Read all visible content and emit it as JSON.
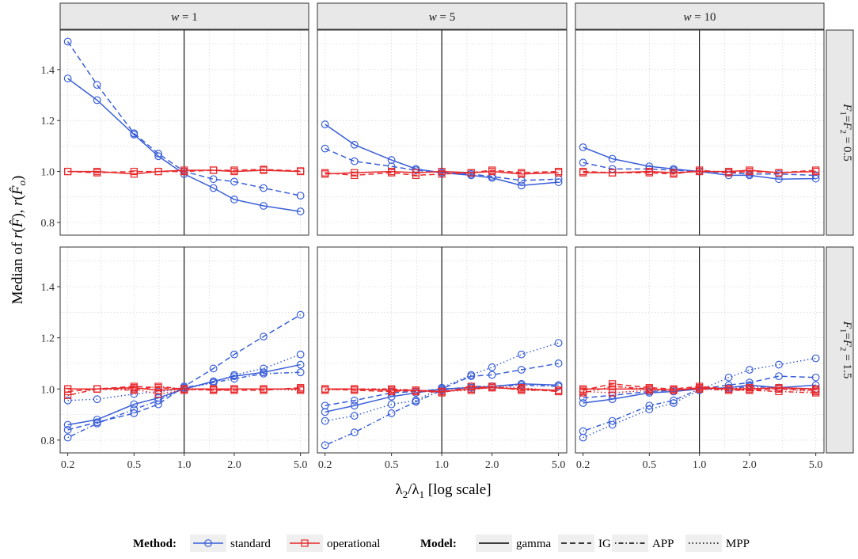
{
  "chart_data": {
    "type": "line",
    "x_axis": {
      "title": "λ2/λ1 [log scale]",
      "scale": "log",
      "ticks": [
        0.2,
        0.5,
        1.0,
        2.0,
        5.0
      ],
      "tick_labels": [
        "0.2",
        "0.5",
        "1.0",
        "2.0",
        "5.0"
      ],
      "range": [
        0.18,
        5.6
      ],
      "reference_line": 1.0
    },
    "y_axis": {
      "title": "Median of r(F̂), r(F̂o)",
      "ticks": [
        0.8,
        1.0,
        1.2,
        1.4
      ],
      "tick_labels": [
        "0.8",
        "1.0",
        "1.2",
        "1.4"
      ],
      "range": [
        0.75,
        1.555
      ]
    },
    "x_values": [
      0.2,
      0.3,
      0.5,
      0.7,
      1.0,
      1.5,
      2.0,
      3.0,
      5.0
    ],
    "col_facets": [
      "w = 1",
      "w = 5",
      "w = 10"
    ],
    "row_facets": [
      "F1=F2=0.5",
      "F1=F2=1.5"
    ],
    "legend": {
      "method_title": "Method:",
      "methods": [
        {
          "key": "standard",
          "label": "standard",
          "color": "#3a5fd9",
          "marker": "circle"
        },
        {
          "key": "operational",
          "label": "operational",
          "color": "#e8282b",
          "marker": "square"
        }
      ],
      "model_title": "Model:",
      "models": [
        {
          "key": "gamma",
          "label": "gamma",
          "dash": "solid"
        },
        {
          "key": "IG",
          "label": "IG",
          "dash": "dashed"
        },
        {
          "key": "APP",
          "label": "APP",
          "dash": "dotdash"
        },
        {
          "key": "MPP",
          "label": "MPP",
          "dash": "dotted"
        }
      ]
    },
    "panels": [
      {
        "row": 0,
        "col": 0,
        "series": [
          {
            "method": "standard",
            "model": "gamma",
            "values": [
              1.365,
              1.28,
              1.145,
              1.06,
              0.99,
              0.935,
              0.89,
              0.865,
              0.843
            ]
          },
          {
            "method": "standard",
            "model": "IG",
            "values": [
              1.51,
              1.34,
              1.15,
              1.07,
              1.0,
              0.97,
              0.96,
              0.935,
              0.905
            ]
          },
          {
            "method": "operational",
            "model": "gamma",
            "values": [
              1.0,
              1.0,
              0.99,
              1.0,
              1.005,
              1.005,
              1.0,
              1.005,
              1.0
            ]
          },
          {
            "method": "operational",
            "model": "IG",
            "values": [
              1.0,
              0.995,
              1.0,
              1.0,
              1.0,
              1.005,
              1.005,
              1.008,
              1.002
            ]
          }
        ]
      },
      {
        "row": 0,
        "col": 1,
        "series": [
          {
            "method": "standard",
            "model": "gamma",
            "values": [
              1.185,
              1.105,
              1.045,
              1.01,
              0.995,
              0.985,
              0.975,
              0.945,
              0.958
            ]
          },
          {
            "method": "standard",
            "model": "IG",
            "values": [
              1.09,
              1.04,
              1.02,
              1.005,
              0.995,
              0.99,
              0.98,
              0.965,
              0.97
            ]
          },
          {
            "method": "operational",
            "model": "gamma",
            "values": [
              0.99,
              0.995,
              1.0,
              0.995,
              1.0,
              0.995,
              1.0,
              0.99,
              0.995
            ]
          },
          {
            "method": "operational",
            "model": "IG",
            "values": [
              0.995,
              0.985,
              0.995,
              0.985,
              0.99,
              0.995,
              1.005,
              0.995,
              1.0
            ]
          }
        ]
      },
      {
        "row": 0,
        "col": 2,
        "series": [
          {
            "method": "standard",
            "model": "gamma",
            "values": [
              1.095,
              1.05,
              1.02,
              1.01,
              1.0,
              0.985,
              0.985,
              0.97,
              0.972
            ]
          },
          {
            "method": "standard",
            "model": "IG",
            "values": [
              1.035,
              1.01,
              1.01,
              1.005,
              1.0,
              0.995,
              0.99,
              0.99,
              0.985
            ]
          },
          {
            "method": "operational",
            "model": "gamma",
            "values": [
              0.995,
              0.995,
              1.0,
              0.995,
              1.0,
              1.0,
              1.005,
              0.995,
              1.0
            ]
          },
          {
            "method": "operational",
            "model": "IG",
            "values": [
              1.0,
              0.995,
              0.995,
              0.99,
              1.005,
              0.995,
              1.0,
              0.995,
              1.005
            ]
          }
        ]
      },
      {
        "row": 1,
        "col": 0,
        "series": [
          {
            "method": "standard",
            "model": "gamma",
            "values": [
              0.86,
              0.88,
              0.94,
              0.965,
              1.0,
              1.03,
              1.05,
              1.065,
              1.095
            ]
          },
          {
            "method": "standard",
            "model": "IG",
            "values": [
              0.84,
              0.87,
              0.905,
              0.94,
              1.01,
              1.08,
              1.135,
              1.205,
              1.29
            ]
          },
          {
            "method": "standard",
            "model": "APP",
            "values": [
              0.81,
              0.865,
              0.92,
              0.955,
              1.005,
              1.025,
              1.04,
              1.06,
              1.065
            ]
          },
          {
            "method": "standard",
            "model": "MPP",
            "values": [
              0.955,
              0.96,
              0.98,
              0.99,
              1.0,
              1.025,
              1.055,
              1.08,
              1.135
            ]
          },
          {
            "method": "operational",
            "model": "gamma",
            "values": [
              1.0,
              1.0,
              1.005,
              0.995,
              1.0,
              1.0,
              1.0,
              1.0,
              1.0
            ]
          },
          {
            "method": "operational",
            "model": "IG",
            "values": [
              0.99,
              1.0,
              1.01,
              1.005,
              1.0,
              0.995,
              0.995,
              0.995,
              1.005
            ]
          },
          {
            "method": "operational",
            "model": "APP",
            "values": [
              0.975,
              1.0,
              0.995,
              1.01,
              1.0,
              0.995,
              1.0,
              1.0,
              1.0
            ]
          },
          {
            "method": "operational",
            "model": "MPP",
            "values": [
              1.0,
              1.0,
              1.0,
              0.98,
              0.995,
              1.0,
              1.0,
              1.0,
              0.995
            ]
          }
        ]
      },
      {
        "row": 1,
        "col": 1,
        "series": [
          {
            "method": "standard",
            "model": "gamma",
            "values": [
              0.91,
              0.935,
              0.97,
              0.985,
              1.0,
              1.005,
              1.01,
              1.02,
              1.015
            ]
          },
          {
            "method": "standard",
            "model": "IG",
            "values": [
              0.935,
              0.955,
              0.985,
              0.99,
              1.0,
              1.05,
              1.055,
              1.075,
              1.1
            ]
          },
          {
            "method": "standard",
            "model": "APP",
            "values": [
              0.78,
              0.83,
              0.905,
              0.95,
              0.995,
              1.01,
              1.01,
              1.015,
              1.01
            ]
          },
          {
            "method": "standard",
            "model": "MPP",
            "values": [
              0.875,
              0.895,
              0.94,
              0.955,
              1.005,
              1.055,
              1.085,
              1.135,
              1.18
            ]
          },
          {
            "method": "operational",
            "model": "gamma",
            "values": [
              1.0,
              1.0,
              0.995,
              0.995,
              0.99,
              1.0,
              1.005,
              1.0,
              0.995
            ]
          },
          {
            "method": "operational",
            "model": "IG",
            "values": [
              1.0,
              0.995,
              0.99,
              0.995,
              0.985,
              1.01,
              1.005,
              1.0,
              0.99
            ]
          },
          {
            "method": "operational",
            "model": "APP",
            "values": [
              1.0,
              1.0,
              1.0,
              0.995,
              0.99,
              1.0,
              1.01,
              0.995,
              0.995
            ]
          },
          {
            "method": "operational",
            "model": "MPP",
            "values": [
              0.995,
              1.0,
              0.995,
              0.99,
              0.99,
              0.995,
              1.01,
              1.005,
              0.99
            ]
          }
        ]
      },
      {
        "row": 1,
        "col": 2,
        "series": [
          {
            "method": "standard",
            "model": "gamma",
            "values": [
              0.945,
              0.96,
              0.985,
              0.99,
              1.0,
              1.005,
              1.015,
              1.005,
              1.015
            ]
          },
          {
            "method": "standard",
            "model": "IG",
            "values": [
              0.965,
              0.975,
              0.99,
              0.995,
              1.0,
              1.015,
              1.025,
              1.05,
              1.045
            ]
          },
          {
            "method": "standard",
            "model": "APP",
            "values": [
              0.835,
              0.875,
              0.935,
              0.955,
              1.0,
              1.0,
              1.01,
              1.005,
              1.0
            ]
          },
          {
            "method": "standard",
            "model": "MPP",
            "values": [
              0.81,
              0.86,
              0.92,
              0.945,
              0.995,
              1.045,
              1.075,
              1.095,
              1.12
            ]
          },
          {
            "method": "operational",
            "model": "gamma",
            "values": [
              1.0,
              1.0,
              1.0,
              0.995,
              1.005,
              1.0,
              1.0,
              1.005,
              1.0
            ]
          },
          {
            "method": "operational",
            "model": "IG",
            "values": [
              0.995,
              1.02,
              1.005,
              1.0,
              1.01,
              1.0,
              0.995,
              1.0,
              0.995
            ]
          },
          {
            "method": "operational",
            "model": "APP",
            "values": [
              0.985,
              1.01,
              1.0,
              0.995,
              1.0,
              0.995,
              0.995,
              0.99,
              0.985
            ]
          },
          {
            "method": "operational",
            "model": "MPP",
            "values": [
              0.99,
              0.985,
              0.995,
              0.995,
              1.0,
              1.0,
              1.005,
              1.0,
              0.99
            ]
          }
        ]
      }
    ]
  }
}
